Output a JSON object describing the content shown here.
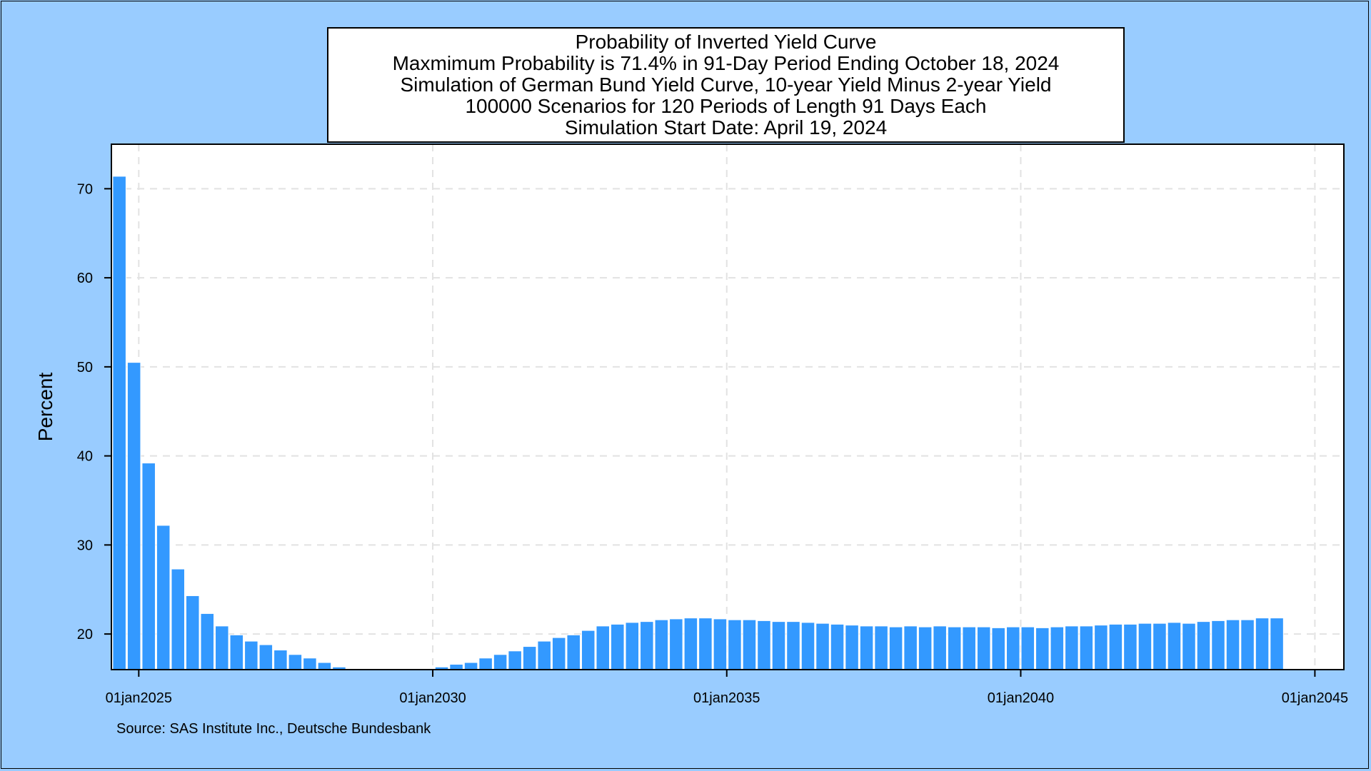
{
  "chart_data": {
    "type": "bar",
    "title": "Probability of Inverted Yield Curve",
    "subtitles": [
      "Maxmimum Probability is 71.4% in 91-Day Period Ending October 18, 2024",
      "Simulation of German Bund Yield Curve, 10-year Yield Minus 2-year Yield",
      "100000 Scenarios for 120 Periods of Length 91 Days Each",
      "Simulation Start Date: April 19, 2024"
    ],
    "xlabel": "",
    "ylabel": "Percent",
    "x_ticks": [
      "01jan2025",
      "01jan2030",
      "01jan2035",
      "01jan2040",
      "01jan2045"
    ],
    "y_ticks": [
      20,
      30,
      40,
      50,
      60,
      70
    ],
    "xlim": [
      "2024-07-15",
      "2045-06-30"
    ],
    "ylim": [
      16,
      75
    ],
    "bar_base": 16,
    "grid": true,
    "first_bar_date": "2024-10-18",
    "bar_interval_days": 91,
    "values": [
      71.4,
      50.5,
      39.2,
      32.2,
      27.3,
      24.3,
      22.3,
      20.9,
      19.9,
      19.2,
      18.8,
      18.2,
      17.7,
      17.3,
      16.8,
      16.3,
      16.1,
      16.0,
      16.0,
      16.0,
      16.0,
      16.1,
      16.3,
      16.6,
      16.8,
      17.3,
      17.7,
      18.1,
      18.6,
      19.2,
      19.6,
      19.9,
      20.4,
      20.9,
      21.1,
      21.3,
      21.4,
      21.6,
      21.7,
      21.8,
      21.8,
      21.7,
      21.6,
      21.6,
      21.5,
      21.4,
      21.4,
      21.3,
      21.2,
      21.1,
      21.0,
      20.9,
      20.9,
      20.8,
      20.9,
      20.8,
      20.9,
      20.8,
      20.8,
      20.8,
      20.7,
      20.8,
      20.8,
      20.7,
      20.8,
      20.9,
      20.9,
      21.0,
      21.1,
      21.1,
      21.2,
      21.2,
      21.3,
      21.2,
      21.4,
      21.5,
      21.6,
      21.6,
      21.8,
      21.8
    ],
    "bar_color": "#3399ff",
    "source": "Source: SAS Institute Inc., Deutsche Bundesbank"
  }
}
